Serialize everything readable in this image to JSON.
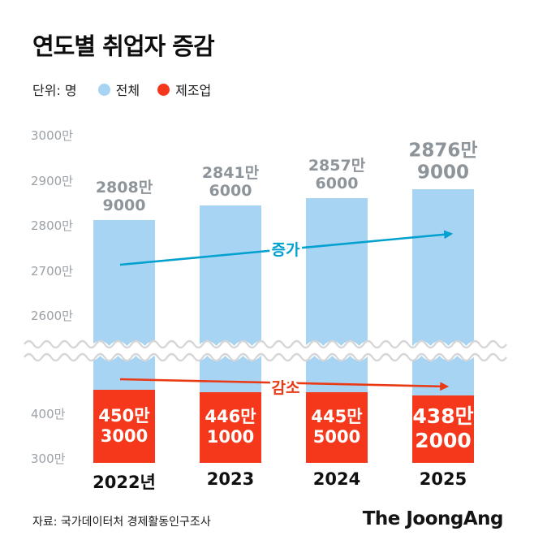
{
  "header": {
    "title": "연도별 취업자 증감",
    "unit_label": "단위: 명",
    "legend": [
      {
        "label": "전체",
        "color": "#a7d4f3"
      },
      {
        "label": "제조업",
        "color": "#f5381b"
      }
    ]
  },
  "chart_data": {
    "type": "bar",
    "title": "연도별 취업자 증감",
    "unit": "명",
    "grid": false,
    "legend_position": "top",
    "axis_break": true,
    "categories": [
      "2022년",
      "2023",
      "2024",
      "2025"
    ],
    "series": [
      {
        "name": "전체",
        "color": "#a7d4f3",
        "values_man": [
          2808.9,
          2841.6,
          2857.6,
          2876.9
        ],
        "labels": [
          [
            "2808만",
            "9000"
          ],
          [
            "2841만",
            "6000"
          ],
          [
            "2857만",
            "6000"
          ],
          [
            "2876만",
            "9000"
          ]
        ]
      },
      {
        "name": "제조업",
        "color": "#f5381b",
        "values_man": [
          450.3,
          446.1,
          445.5,
          438.2
        ],
        "labels": [
          [
            "450만",
            "3000"
          ],
          [
            "446만",
            "1000"
          ],
          [
            "445만",
            "5000"
          ],
          [
            "438만",
            "2000"
          ]
        ]
      }
    ],
    "emphasis_index": 3,
    "value_label_color": "#8d949a",
    "y_axis_top_ticks": [
      {
        "label": "3000만",
        "value": 3000
      },
      {
        "label": "2900만",
        "value": 2900
      },
      {
        "label": "2800만",
        "value": 2800
      },
      {
        "label": "2700만",
        "value": 2700
      },
      {
        "label": "2600만",
        "value": 2600
      }
    ],
    "y_axis_bottom_ticks": [
      {
        "label": "400만",
        "value": 400
      },
      {
        "label": "300만",
        "value": 300
      }
    ],
    "annotations": [
      {
        "id": "increase",
        "text": "증가",
        "color": "#00a0cf"
      },
      {
        "id": "decrease",
        "text": "감소",
        "color": "#ea3a15"
      }
    ]
  },
  "footer": {
    "source": "자료: 국가데이터처 경제활동인구조사",
    "logo": "The JoongAng"
  }
}
